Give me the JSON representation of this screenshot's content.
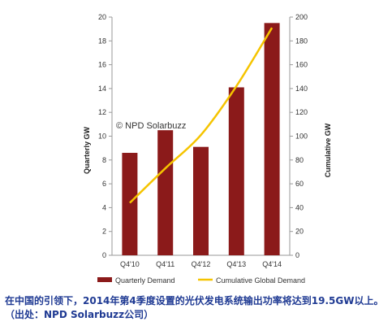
{
  "chart_data": {
    "type": "bar",
    "categories": [
      "Q4'10",
      "Q4'11",
      "Q4'12",
      "Q4'13",
      "Q4'14"
    ],
    "series": [
      {
        "name": "Quarterly Demand",
        "type": "bar",
        "axis": "left",
        "color": "#8b1a1a",
        "values": [
          8.6,
          10.5,
          9.1,
          14.1,
          19.5
        ]
      },
      {
        "name": "Cumulative Global Demand",
        "type": "line",
        "axis": "right",
        "color": "#f5c400",
        "values": [
          44,
          73,
          101,
          142,
          191
        ]
      }
    ],
    "ylabel": "Quarterly GW",
    "y2label": "Cumulative GW",
    "ylim": [
      0,
      20
    ],
    "y2lim": [
      0,
      200
    ],
    "yticks": [
      "0",
      "2",
      "4",
      "6",
      "8",
      "10",
      "12",
      "14",
      "16",
      "18",
      "20"
    ],
    "y2ticks": [
      "0",
      "20",
      "40",
      "60",
      "80",
      "100",
      "120",
      "140",
      "160",
      "180",
      "200"
    ],
    "annotation": "© NPD Solarbuzz",
    "legend_position": "bottom",
    "grid": false
  },
  "caption": "在中国的引领下，2014年第4季度设置的光伏发电系统输出功率将达到19.5GW以上。（出处：NPD Solarbuzz公司）"
}
